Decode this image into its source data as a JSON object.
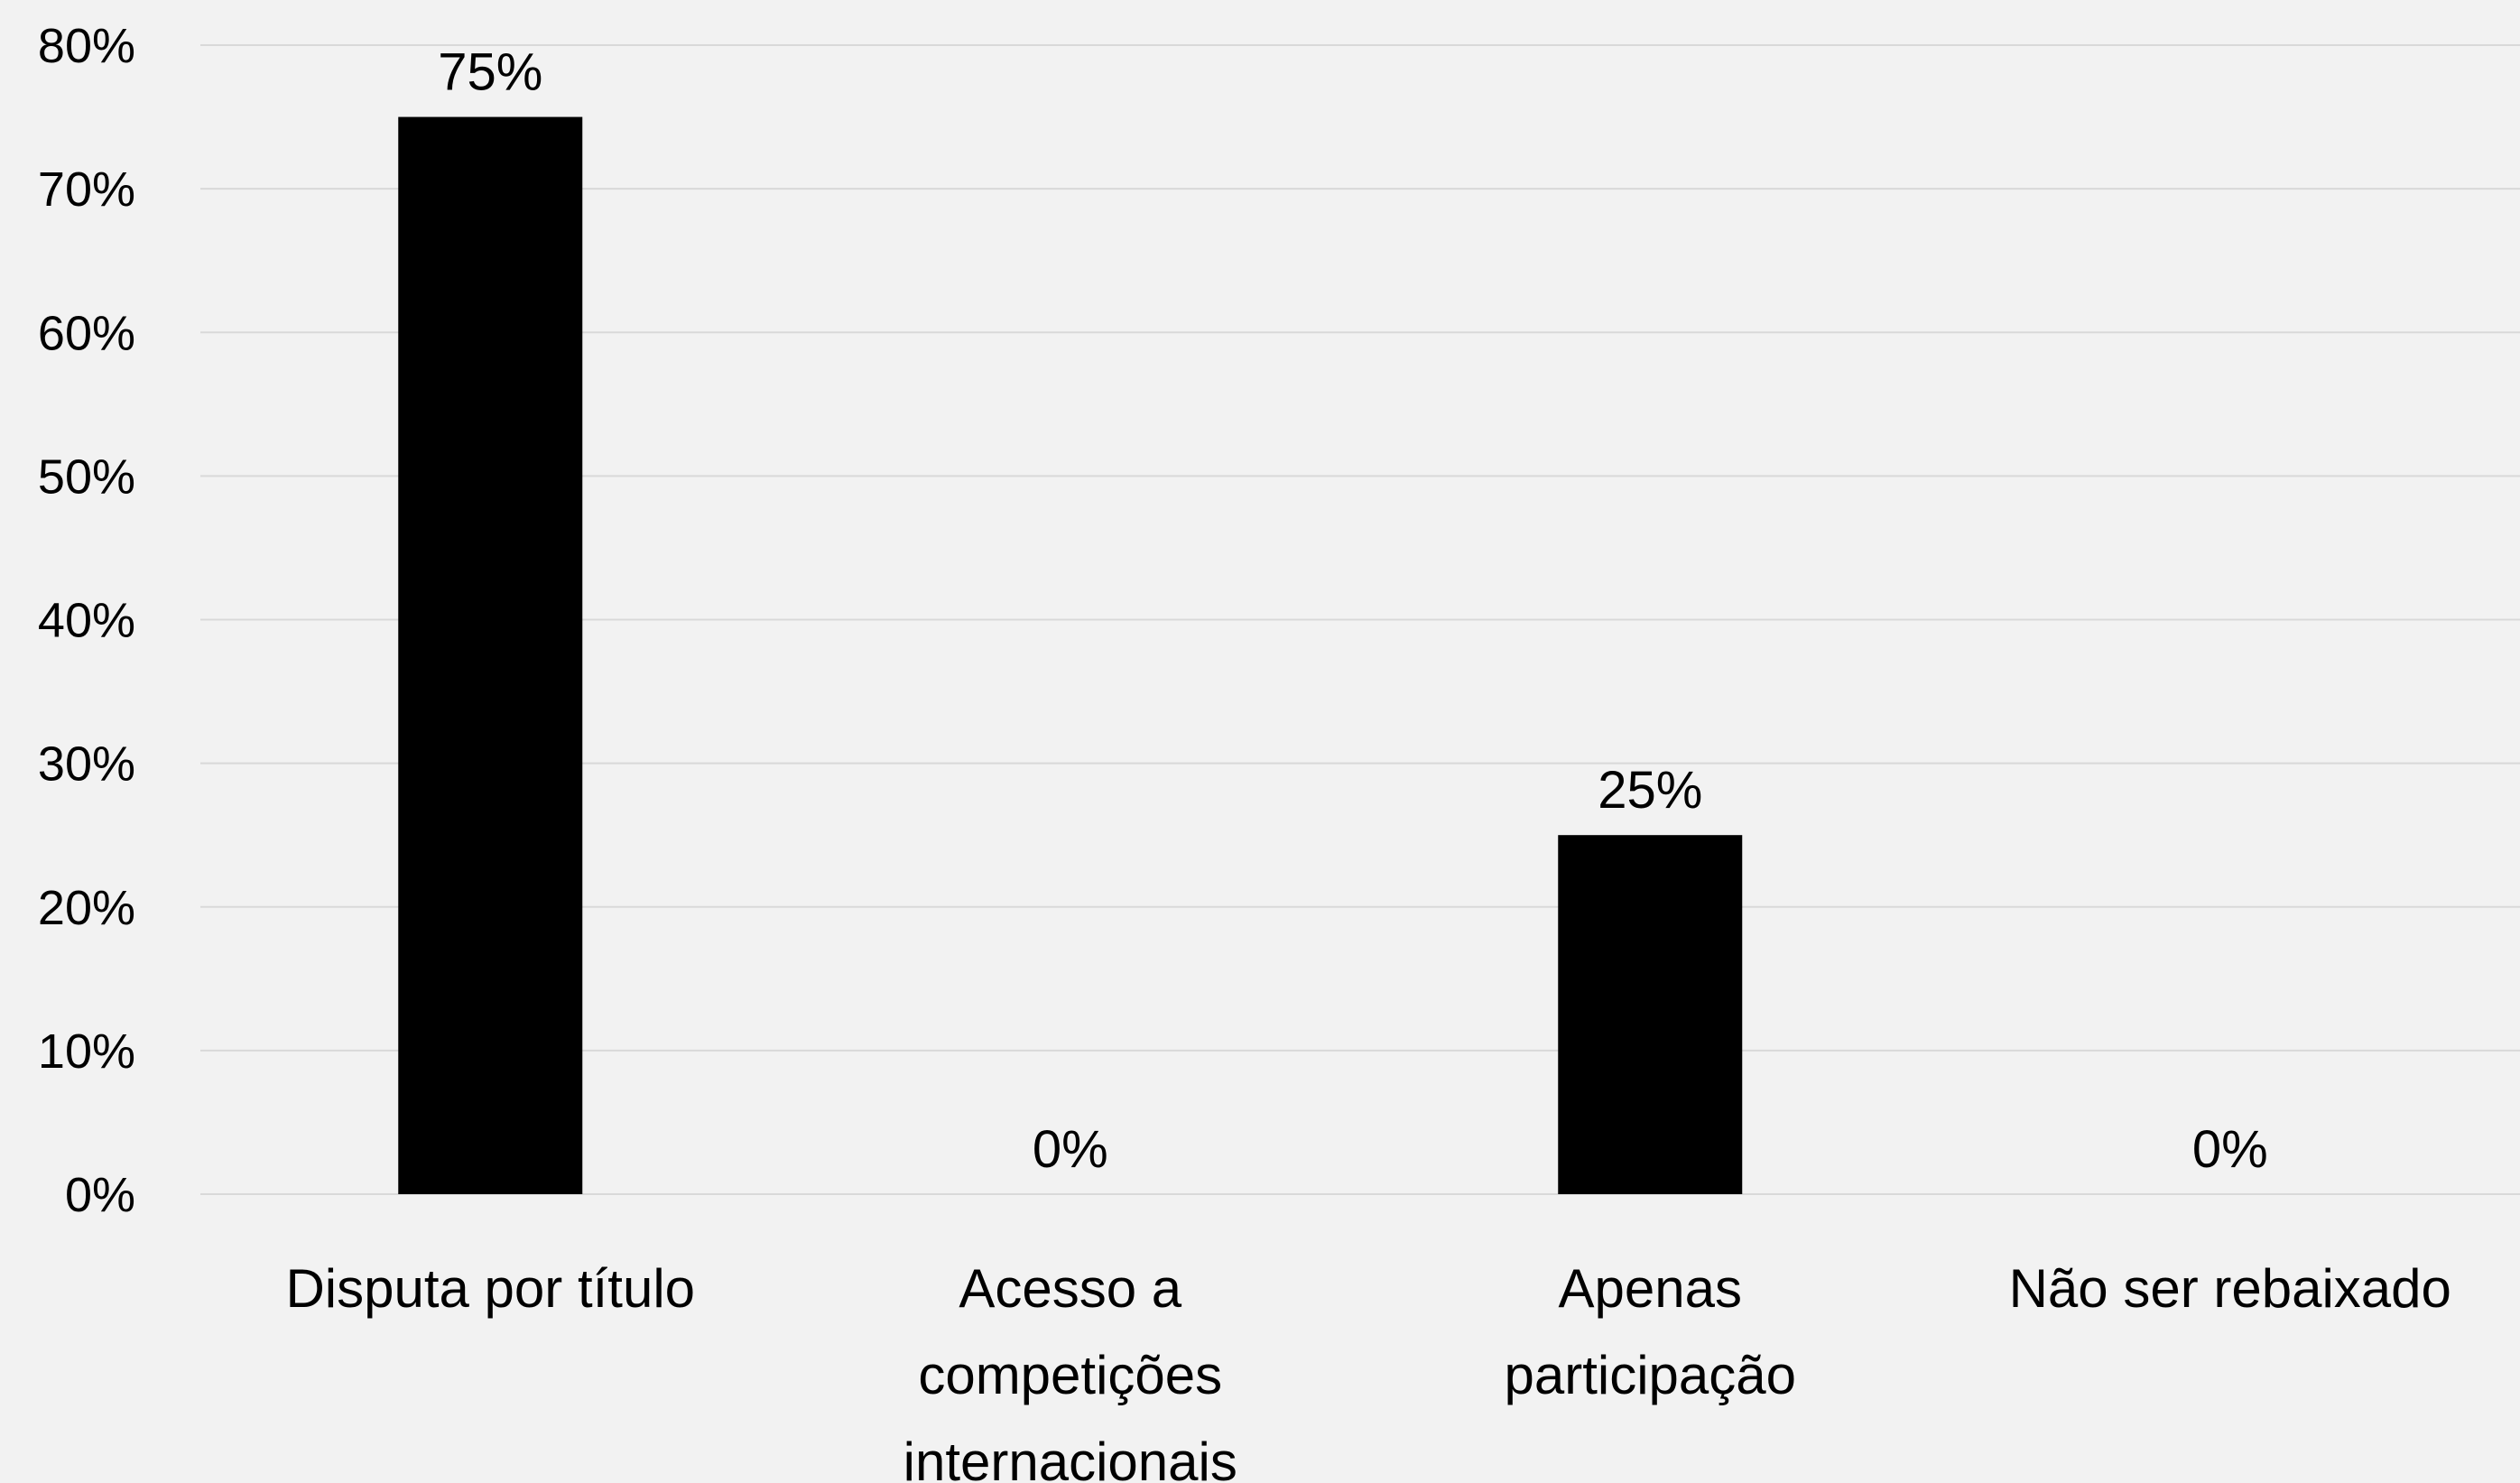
{
  "chart_data": {
    "type": "bar",
    "categories": [
      "Disputa por título",
      "Acesso a competições internacionais",
      "Apenas participação",
      "Não ser rebaixado"
    ],
    "category_lines": [
      [
        "Disputa por título"
      ],
      [
        "Acesso a",
        "competições",
        "internacionais"
      ],
      [
        "Apenas",
        "participação"
      ],
      [
        "Não ser rebaixado"
      ]
    ],
    "values": [
      75,
      0,
      25,
      0
    ],
    "data_labels": [
      "75%",
      "0%",
      "25%",
      "0%"
    ],
    "ylim": [
      0,
      80
    ],
    "yticks": [
      0,
      10,
      20,
      30,
      40,
      50,
      60,
      70,
      80
    ],
    "ytick_labels": [
      "0%",
      "10%",
      "20%",
      "30%",
      "40%",
      "50%",
      "60%",
      "70%",
      "80%"
    ],
    "grid": true,
    "bar_color": "#000000",
    "background_color": "#f2f2f2",
    "title": "",
    "xlabel": "",
    "ylabel": ""
  }
}
